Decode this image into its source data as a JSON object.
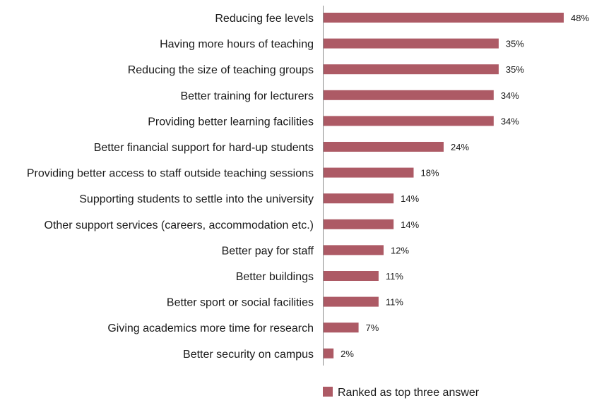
{
  "chart_data": {
    "type": "bar",
    "orientation": "horizontal",
    "categories": [
      "Reducing fee levels",
      "Having more hours of teaching",
      "Reducing the size of teaching groups",
      "Better training for lecturers",
      "Providing better learning facilities",
      "Better financial support for hard-up students",
      "Providing better access to staff outside teaching sessions",
      "Supporting students to settle into the university",
      "Other support services (careers, accommodation etc.)",
      "Better pay for staff",
      "Better buildings",
      "Better sport or social facilities",
      "Giving academics more time for research",
      "Better security on campus"
    ],
    "series": [
      {
        "name": "Ranked as top three answer",
        "values": [
          48,
          35,
          35,
          34,
          34,
          24,
          18,
          14,
          14,
          12,
          11,
          11,
          7,
          2
        ],
        "value_labels": [
          "48%",
          "35%",
          "35%",
          "34%",
          "34%",
          "24%",
          "18%",
          "14%",
          "14%",
          "12%",
          "11%",
          "11%",
          "7%",
          "2%"
        ],
        "color": "#ad5a65"
      }
    ],
    "xlim": [
      0,
      52
    ],
    "grid": false,
    "legend_position": "bottom-right"
  }
}
